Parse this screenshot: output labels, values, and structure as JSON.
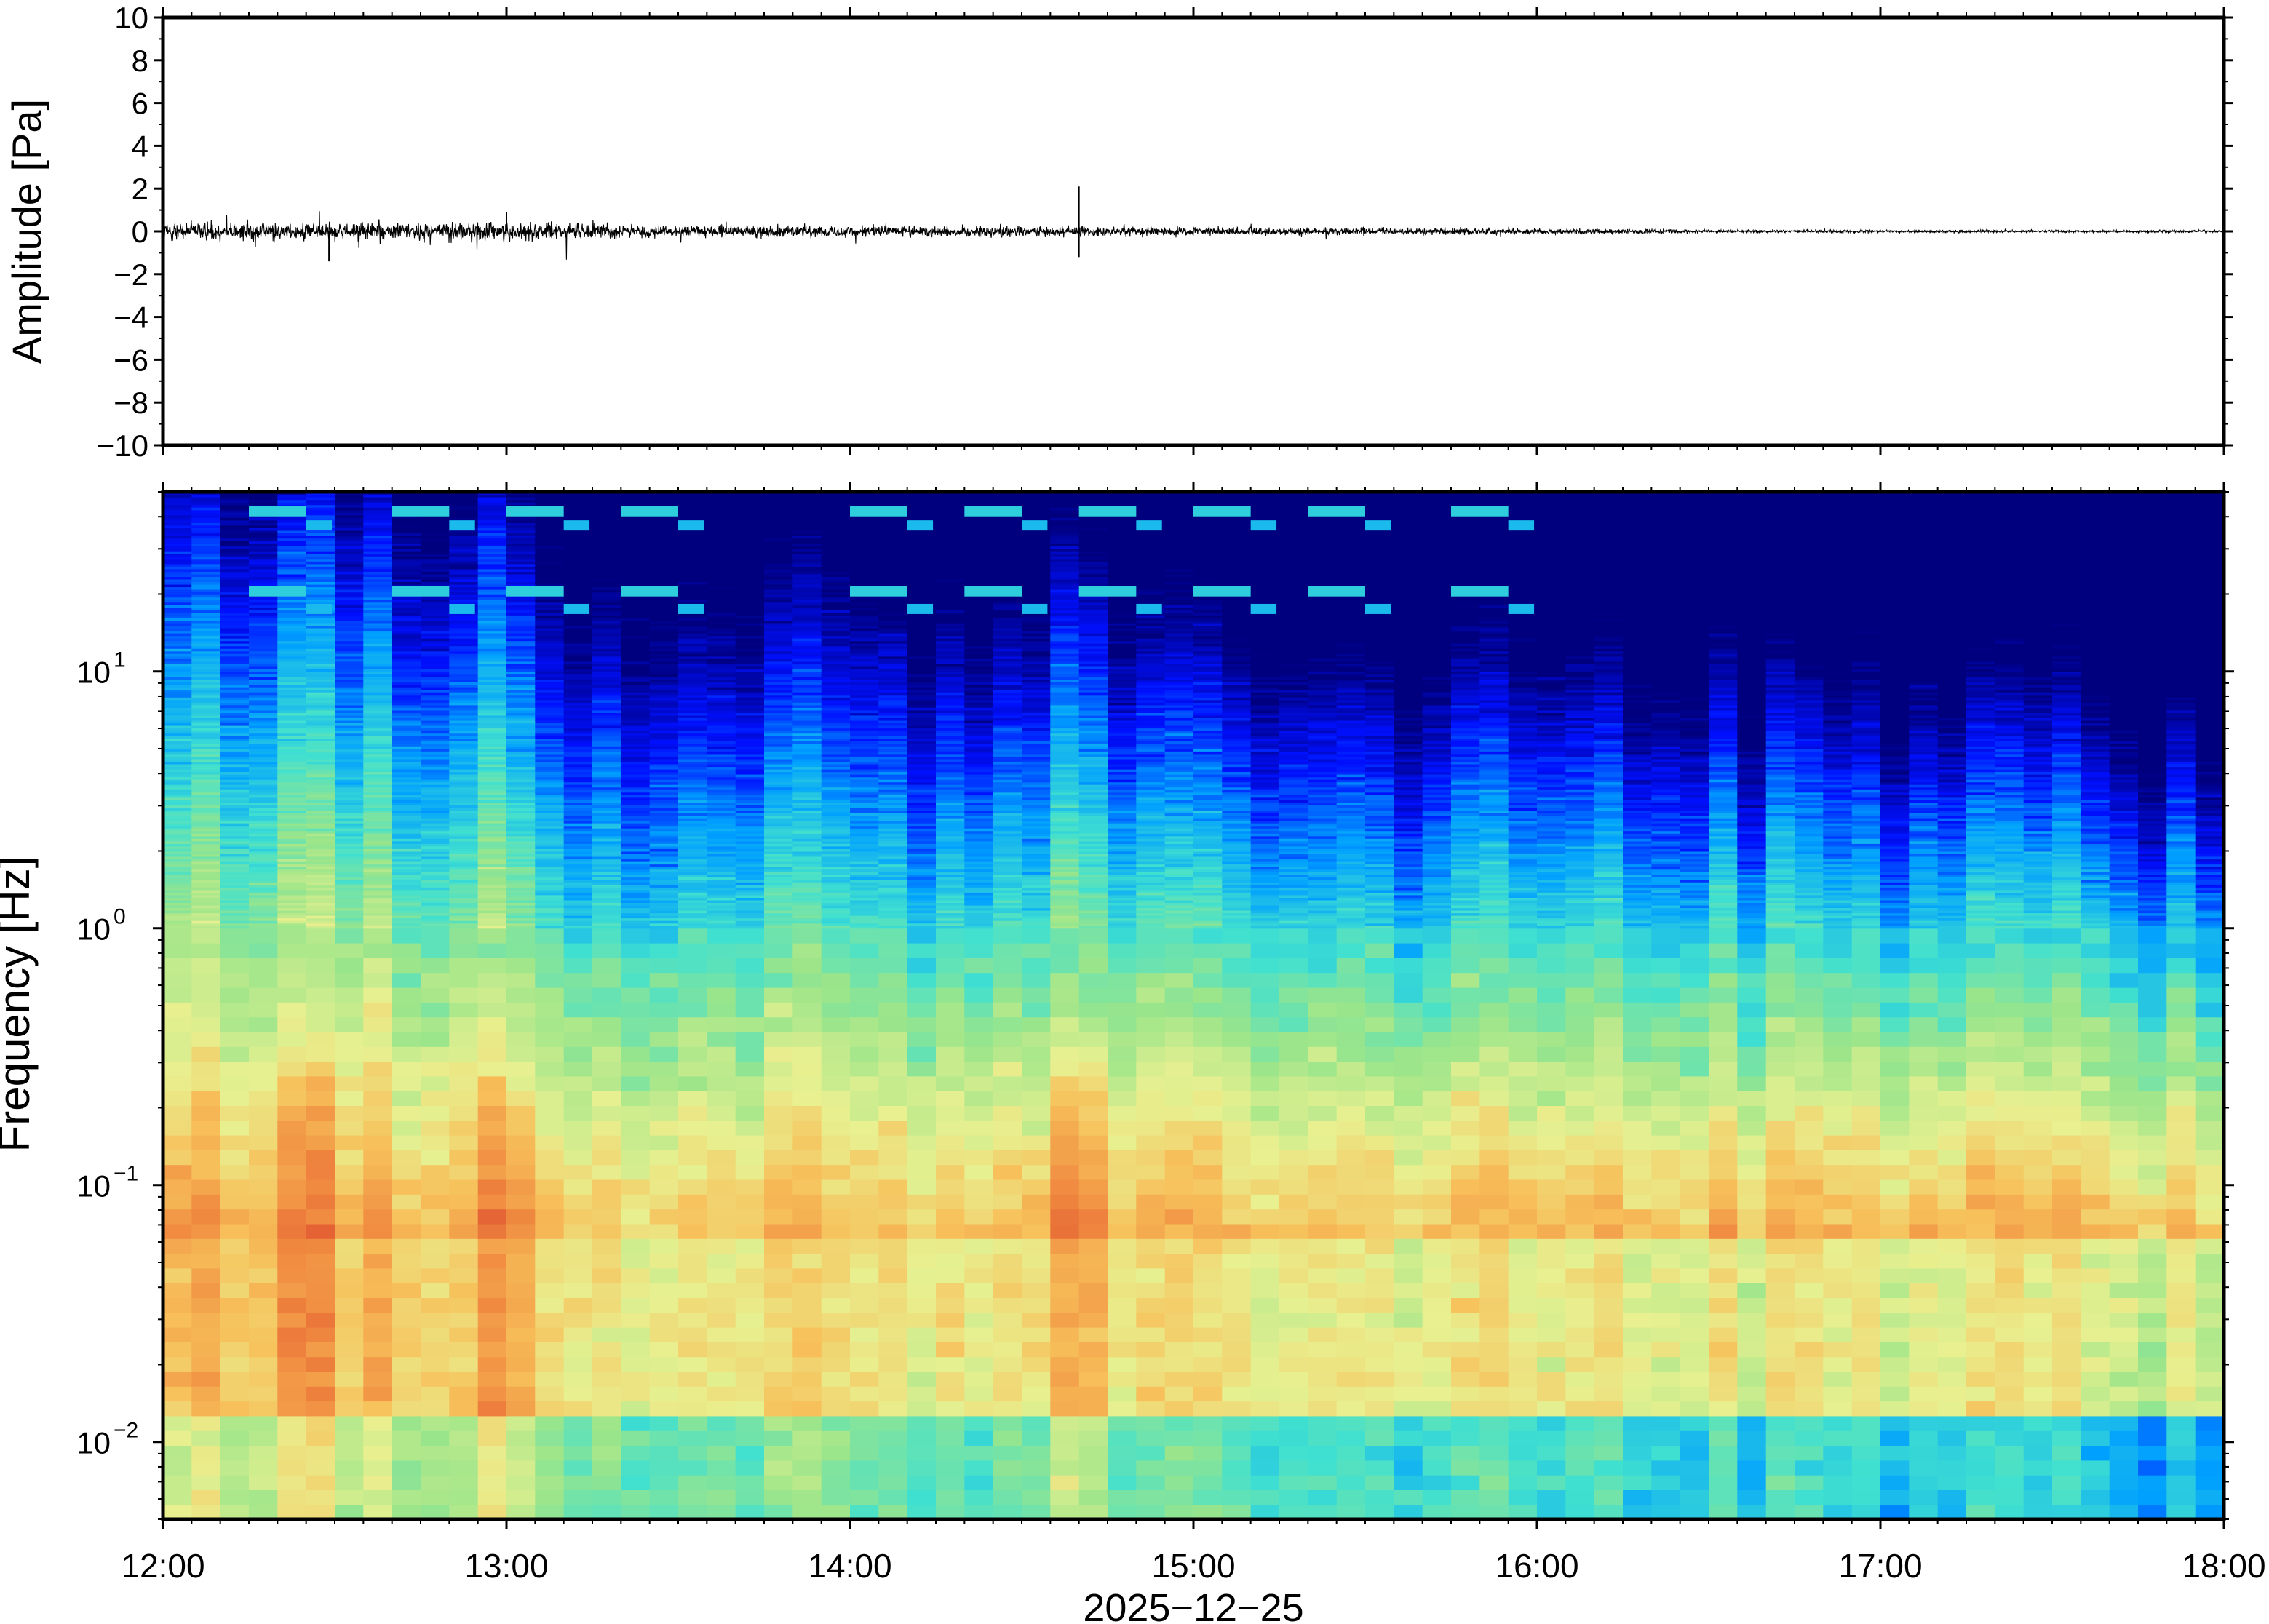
{
  "chart_data": [
    {
      "type": "line",
      "ylabel": "Amplitude [Pa]",
      "ylim": [
        -10,
        10
      ],
      "yticks": [
        "10",
        "8",
        "6",
        "4",
        "2",
        "0",
        "−2",
        "−4",
        "−6",
        "−8",
        "−10"
      ],
      "ytick_values": [
        10,
        8,
        6,
        4,
        2,
        0,
        -2,
        -4,
        -6,
        -8,
        -10
      ],
      "xlim": [
        "12:00",
        "18:00"
      ],
      "grid": false,
      "series": [
        {
          "values_description_free": true,
          "noise_envelope_pa": [
            {
              "t": "12:00",
              "amp": 0.55
            },
            {
              "t": "13:00",
              "amp": 0.6
            },
            {
              "t": "13:30",
              "amp": 0.35
            },
            {
              "t": "14:30",
              "amp": 0.35
            },
            {
              "t": "15:00",
              "amp": 0.25
            },
            {
              "t": "16:00",
              "amp": 0.2
            },
            {
              "t": "16:30",
              "amp": 0.1
            },
            {
              "t": "18:00",
              "amp": 0.07
            }
          ],
          "peaks": [
            {
              "t": "12:29",
              "y": -1.4
            },
            {
              "t": "13:00",
              "y": 0.9
            },
            {
              "t": "14:40",
              "y": 2.1
            },
            {
              "t": "14:40",
              "y": -1.2
            }
          ]
        }
      ],
      "line_color": "#000000"
    },
    {
      "type": "heatmap",
      "ylabel": "Frequency [Hz]",
      "yscale": "log",
      "ylim": [
        0.005,
        50
      ],
      "yticks": [
        {
          "value": 10,
          "base": "10",
          "exp": "1"
        },
        {
          "value": 1,
          "base": "10",
          "exp": "0"
        },
        {
          "value": 0.1,
          "base": "10",
          "exp": "−1"
        },
        {
          "value": 0.01,
          "base": "10",
          "exp": "−2"
        }
      ],
      "xlim": [
        "12:00",
        "18:00"
      ],
      "xticks": [
        "12:00",
        "13:00",
        "14:00",
        "15:00",
        "16:00",
        "17:00",
        "18:00"
      ],
      "xlabel": "2025−12−25",
      "colormap": [
        "#00007f",
        "#0010ff",
        "#00a0ff",
        "#40e0d0",
        "#9be58a",
        "#e8f090",
        "#f7c05a",
        "#f08a40",
        "#e05030"
      ],
      "tonal_features_hz": [
        {
          "t_start": "12:15",
          "t_end": "12:25",
          "f": 20
        },
        {
          "t_start": "12:15",
          "t_end": "12:25",
          "f": 42
        },
        {
          "t_start": "12:35",
          "t_end": "12:45",
          "f": 20
        },
        {
          "t_start": "12:35",
          "t_end": "12:45",
          "f": 42
        }
      ],
      "tonal_times": [
        "12:15",
        "12:40",
        "13:00",
        "13:20",
        "14:00",
        "14:20",
        "14:40",
        "15:00",
        "15:20",
        "15:45"
      ],
      "event_columns": [
        {
          "t": "12:25",
          "peak_level": 0.95
        },
        {
          "t": "13:00",
          "peak_level": 0.85
        },
        {
          "t": "14:40",
          "peak_level": 1.0
        }
      ]
    }
  ]
}
